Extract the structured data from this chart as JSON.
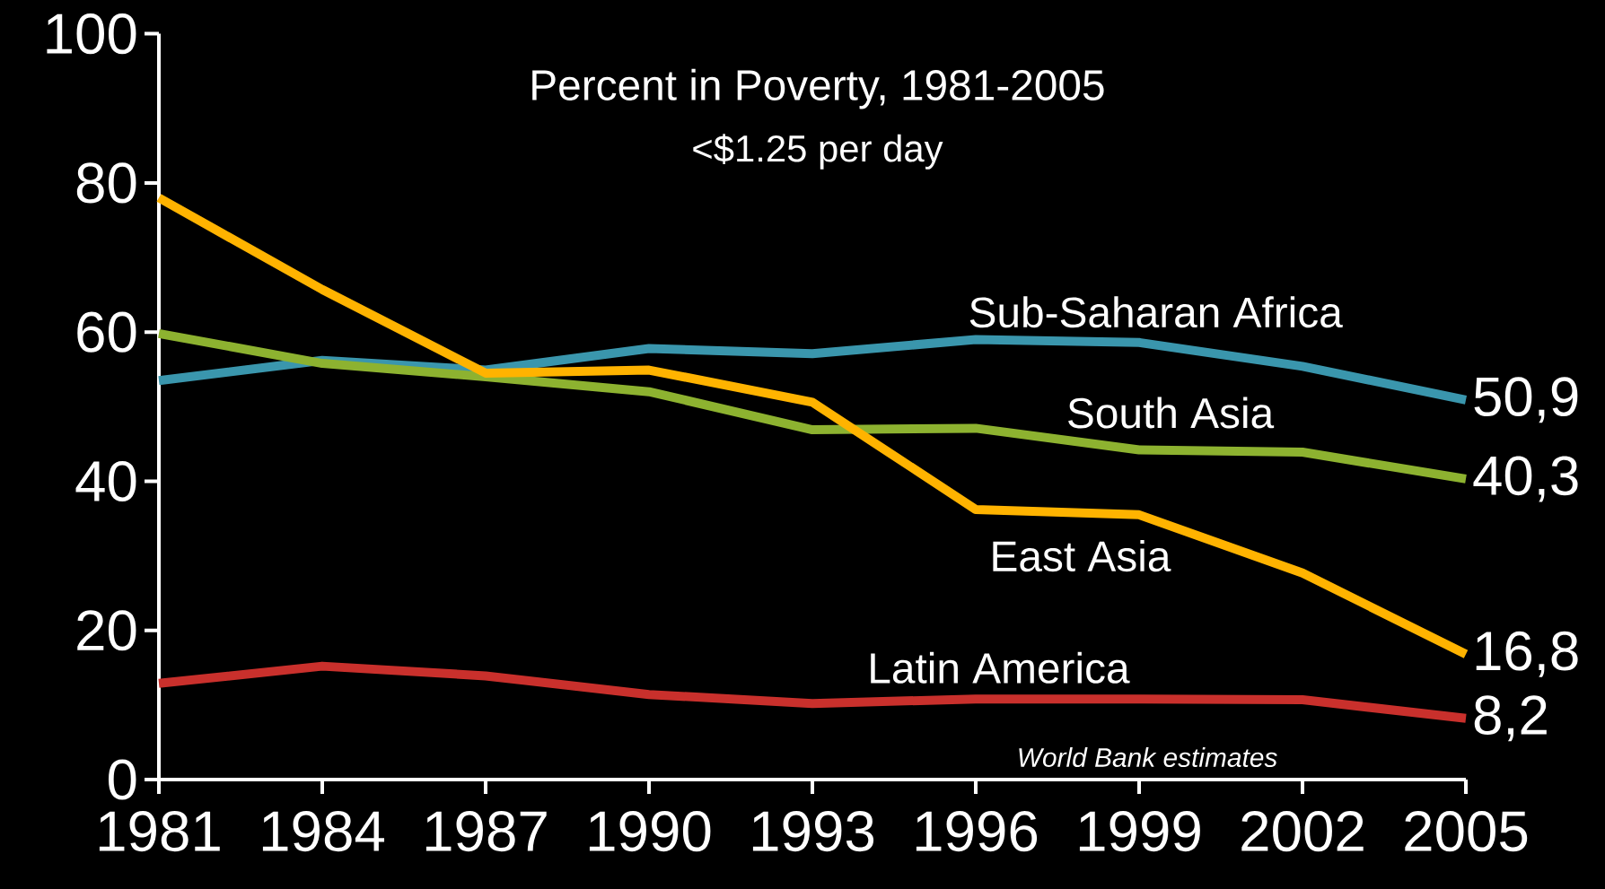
{
  "chart_data": {
    "type": "line",
    "title": "Percent in Poverty, 1981-2005",
    "subtitle": "<$1.25 per day",
    "categories": [
      "1981",
      "1984",
      "1987",
      "1990",
      "1993",
      "1996",
      "1999",
      "2002",
      "2005"
    ],
    "series": [
      {
        "name": "Sub-Saharan Africa",
        "color": "#3a96ad",
        "values": [
          53.5,
          56.2,
          54.9,
          57.8,
          57.1,
          59.0,
          58.6,
          55.4,
          50.9
        ],
        "value_labels": [
          null,
          null,
          null,
          null,
          null,
          null,
          null,
          null,
          "50,9"
        ]
      },
      {
        "name": "South Asia",
        "color": "#8db230",
        "values": [
          59.8,
          55.8,
          54.0,
          52.0,
          46.9,
          47.1,
          44.2,
          43.9,
          40.3
        ],
        "value_labels": [
          null,
          null,
          null,
          null,
          null,
          null,
          null,
          null,
          "40,3"
        ]
      },
      {
        "name": "East Asia",
        "color": "#ffb300",
        "values": [
          78.0,
          65.7,
          54.5,
          54.9,
          50.6,
          36.2,
          35.5,
          27.7,
          16.8
        ],
        "value_labels": [
          null,
          null,
          null,
          null,
          null,
          null,
          null,
          null,
          "16,8"
        ]
      },
      {
        "name": "Latin America",
        "color": "#c9302c",
        "values": [
          12.9,
          15.2,
          13.9,
          11.4,
          10.2,
          10.8,
          10.8,
          10.7,
          8.2
        ],
        "value_labels": [
          null,
          null,
          null,
          null,
          null,
          null,
          null,
          null,
          "8,2"
        ]
      }
    ],
    "ylim": [
      0,
      100
    ],
    "yticks": [
      0,
      20,
      40,
      60,
      80,
      100
    ],
    "annotations": [
      "*World  Bank estimates*"
    ]
  }
}
